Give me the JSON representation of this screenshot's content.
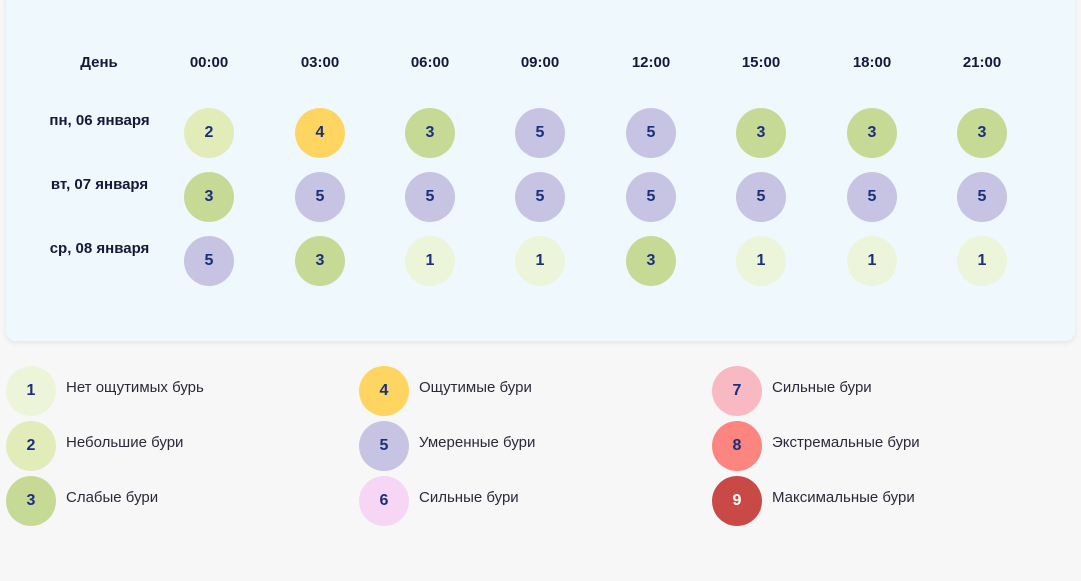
{
  "table": {
    "day_header": "День",
    "times": [
      "00:00",
      "03:00",
      "06:00",
      "09:00",
      "12:00",
      "15:00",
      "18:00",
      "21:00"
    ],
    "rows": [
      {
        "day": "пн, 06 января",
        "values": [
          2,
          4,
          3,
          5,
          5,
          3,
          3,
          3
        ]
      },
      {
        "day": "вт, 07 января",
        "values": [
          3,
          5,
          5,
          5,
          5,
          5,
          5,
          5
        ]
      },
      {
        "day": "ср, 08 января",
        "values": [
          5,
          3,
          1,
          1,
          3,
          1,
          1,
          1
        ]
      }
    ]
  },
  "legend": [
    {
      "level": "1",
      "label": "Нет ощутимых бурь",
      "color": "#ecf5da"
    },
    {
      "level": "2",
      "label": "Небольшие бури",
      "color": "#e2ecb9"
    },
    {
      "level": "3",
      "label": "Слабые бури",
      "color": "#c6d995"
    },
    {
      "level": "4",
      "label": "Ощутимые бури",
      "color": "#fdd560"
    },
    {
      "level": "5",
      "label": "Умеренные бури",
      "color": "#c7c4e3"
    },
    {
      "level": "6",
      "label": "Сильные бури",
      "color": "#f6d6f4"
    },
    {
      "level": "7",
      "label": "Сильные бури",
      "color": "#f9b9c3"
    },
    {
      "level": "8",
      "label": "Экстремальные бури",
      "color": "#fc857f"
    },
    {
      "level": "9",
      "label": "Максимальные бури",
      "color": "#c84945"
    }
  ],
  "colors": {
    "text_dark": "#17173a",
    "digit": "#1b2f7a",
    "digit_on_dark": "#ffffff",
    "card_bg": "#eff8fd",
    "page_bg": "#f7f7f7"
  }
}
